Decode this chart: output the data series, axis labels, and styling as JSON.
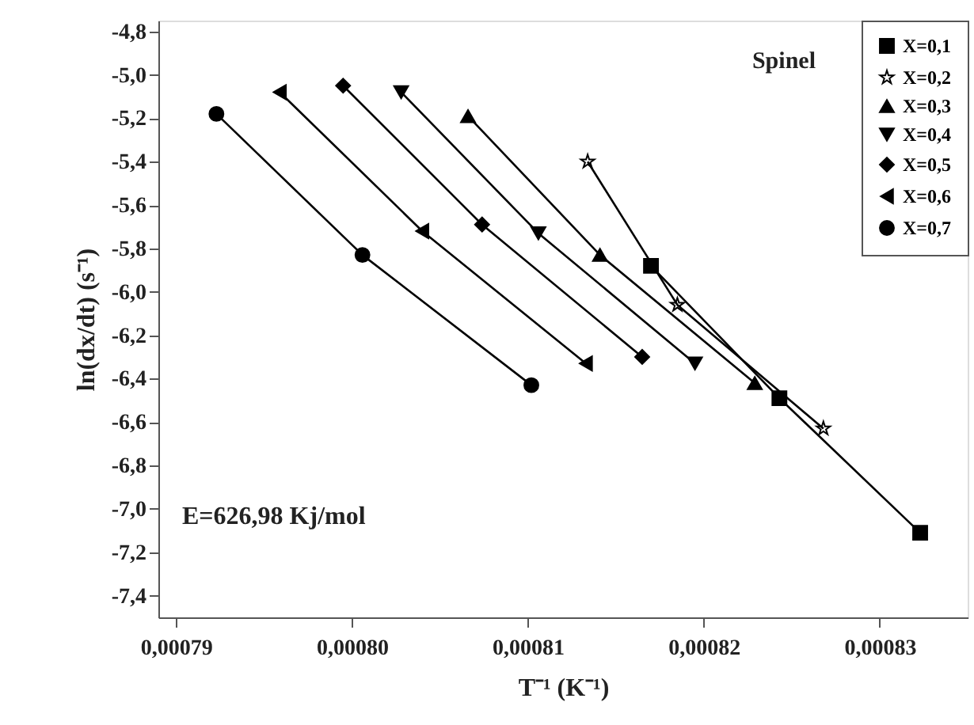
{
  "chart_data": {
    "type": "line",
    "xlabel": "T⁻¹ (K⁻¹)",
    "ylabel": "ln(dx/dt) (s⁻¹)",
    "xlim": [
      0.000789,
      0.000835
    ],
    "ylim": [
      -7.5,
      -4.75
    ],
    "xticks": [
      {
        "value": 0.00079,
        "label": "0,00079"
      },
      {
        "value": 0.0008,
        "label": "0,00080"
      },
      {
        "value": 0.00081,
        "label": "0,00081"
      },
      {
        "value": 0.00082,
        "label": "0,00082"
      },
      {
        "value": 0.00083,
        "label": "0,00083"
      }
    ],
    "yticks": [
      {
        "value": -4.8,
        "label": "-4,8"
      },
      {
        "value": -5.0,
        "label": "-5,0"
      },
      {
        "value": -5.2,
        "label": "-5,2"
      },
      {
        "value": -5.4,
        "label": "-5,4"
      },
      {
        "value": -5.6,
        "label": "-5,6"
      },
      {
        "value": -5.8,
        "label": "-5,8"
      },
      {
        "value": -6.0,
        "label": "-6,0"
      },
      {
        "value": -6.2,
        "label": "-6,2"
      },
      {
        "value": -6.4,
        "label": "-6,4"
      },
      {
        "value": -6.6,
        "label": "-6,6"
      },
      {
        "value": -6.8,
        "label": "-6,8"
      },
      {
        "value": -7.0,
        "label": "-7,0"
      },
      {
        "value": -7.2,
        "label": "-7,2"
      },
      {
        "value": -7.4,
        "label": "-7,4"
      }
    ],
    "grid": false,
    "legend": "top right",
    "line_style": "solid",
    "annotations": [
      "Spinel",
      "E=626,98 Kj/mol"
    ],
    "series": [
      {
        "name": "X=0,1",
        "color": "#000000",
        "marker": "square",
        "x": [
          0.000817,
          0.0008243,
          0.0008323
        ],
        "values": [
          -5.88,
          -6.49,
          -7.11
        ]
      },
      {
        "name": "X=0,2",
        "color": "#000000",
        "marker": "star",
        "x": [
          0.0008134,
          0.0008185,
          0.0008268
        ],
        "values": [
          -5.4,
          -6.06,
          -6.63
        ]
      },
      {
        "name": "X=0,3",
        "color": "#000000",
        "marker": "triangle",
        "x": [
          0.0008066,
          0.0008141,
          0.0008229
        ],
        "values": [
          -5.19,
          -5.83,
          -6.42
        ]
      },
      {
        "name": "X=0,4",
        "color": "#000000",
        "marker": "triangle-down",
        "x": [
          0.0008028,
          0.0008106,
          0.0008195
        ],
        "values": [
          -5.08,
          -5.73,
          -6.33
        ]
      },
      {
        "name": "X=0,5",
        "color": "#000000",
        "marker": "diamond",
        "x": [
          0.0007995,
          0.0008074,
          0.0008165
        ],
        "values": [
          -5.05,
          -5.69,
          -6.3
        ]
      },
      {
        "name": "X=0,6",
        "color": "#000000",
        "marker": "triangle-left",
        "x": [
          0.0007959,
          0.000804,
          0.0008133
        ],
        "values": [
          -5.08,
          -5.72,
          -6.33
        ]
      },
      {
        "name": "X=0,7",
        "color": "#000000",
        "marker": "circle",
        "x": [
          0.0007923,
          0.0008006,
          0.0008102
        ],
        "values": [
          -5.18,
          -5.83,
          -6.43
        ]
      }
    ]
  }
}
